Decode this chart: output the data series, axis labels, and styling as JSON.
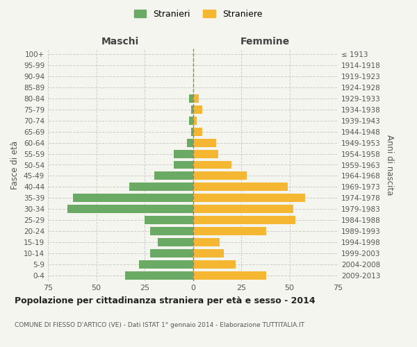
{
  "age_groups": [
    "0-4",
    "5-9",
    "10-14",
    "15-19",
    "20-24",
    "25-29",
    "30-34",
    "35-39",
    "40-44",
    "45-49",
    "50-54",
    "55-59",
    "60-64",
    "65-69",
    "70-74",
    "75-79",
    "80-84",
    "85-89",
    "90-94",
    "95-99",
    "100+"
  ],
  "birth_years": [
    "2009-2013",
    "2004-2008",
    "1999-2003",
    "1994-1998",
    "1989-1993",
    "1984-1988",
    "1979-1983",
    "1974-1978",
    "1969-1973",
    "1964-1968",
    "1959-1963",
    "1954-1958",
    "1949-1953",
    "1944-1948",
    "1939-1943",
    "1934-1938",
    "1929-1933",
    "1924-1928",
    "1919-1923",
    "1914-1918",
    "≤ 1913"
  ],
  "males": [
    35,
    28,
    22,
    18,
    22,
    25,
    65,
    62,
    33,
    20,
    10,
    10,
    3,
    1,
    2,
    1,
    2,
    0,
    0,
    0,
    0
  ],
  "females": [
    38,
    22,
    16,
    14,
    38,
    53,
    52,
    58,
    49,
    28,
    20,
    13,
    12,
    5,
    2,
    5,
    3,
    0,
    0,
    0,
    0
  ],
  "male_color": "#6aaa64",
  "female_color": "#f5b731",
  "background_color": "#f5f5f0",
  "grid_color": "#cccccc",
  "title": "Popolazione per cittadinanza straniera per età e sesso - 2014",
  "subtitle": "COMUNE DI FIESSO D'ARTICO (VE) - Dati ISTAT 1° gennaio 2014 - Elaborazione TUTTITALIA.IT",
  "ylabel_left": "Fasce di età",
  "ylabel_right": "Anni di nascita",
  "xlabel_left": "Maschi",
  "xlabel_right": "Femmine",
  "legend_male": "Stranieri",
  "legend_female": "Straniere",
  "xlim": 75
}
